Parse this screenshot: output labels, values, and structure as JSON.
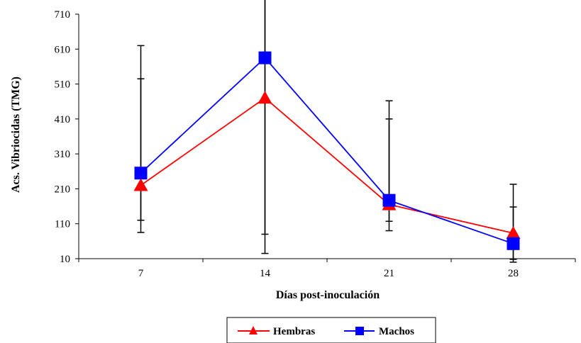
{
  "chart_data": {
    "type": "line",
    "xlabel": "Días post-inoculación",
    "ylabel": "Acs. Vibriocidas (TMG)",
    "categories": [
      "7",
      "14",
      "21",
      "28"
    ],
    "ylim": [
      10,
      710
    ],
    "yticks": [
      10,
      110,
      210,
      310,
      410,
      510,
      610,
      710
    ],
    "grid": false,
    "legend_position": "bottom",
    "series": [
      {
        "name": "Hembras",
        "color": "#ff0000",
        "marker": "triangle",
        "values": [
          220,
          470,
          165,
          83
        ],
        "error_low": [
          135,
          390,
          75,
          75
        ],
        "error_high": [
          305,
          555,
          245,
          75
        ]
      },
      {
        "name": "Machos",
        "color": "#0000ff",
        "marker": "square",
        "values": [
          255,
          585,
          177,
          53
        ],
        "error_low": [
          135,
          560,
          60,
          53
        ],
        "error_high": [
          365,
          700,
          285,
          170
        ]
      }
    ]
  }
}
